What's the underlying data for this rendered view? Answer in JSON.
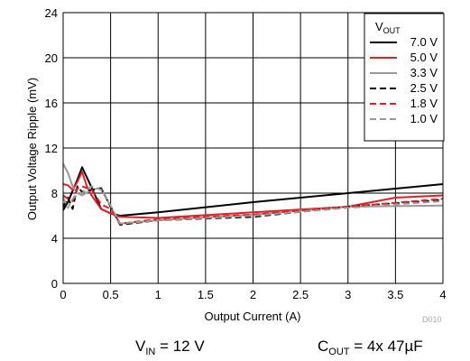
{
  "chart_data": {
    "type": "line",
    "xlabel": "Output Current (A)",
    "ylabel": "Output Voltage Ripple (mV)",
    "xlim": [
      0,
      4
    ],
    "ylim": [
      0,
      24
    ],
    "x_ticks": [
      "0",
      "0.5",
      "1",
      "1.5",
      "2",
      "2.5",
      "3",
      "3.5",
      "4"
    ],
    "y_ticks": [
      "0",
      "4",
      "8",
      "12",
      "16",
      "20",
      "24"
    ],
    "grid": true,
    "legend": {
      "placement": "top-right",
      "title_main": "V",
      "title_sub": "OUT"
    },
    "figure_code": "D010",
    "series": [
      {
        "name": "7.0 V",
        "color": "#000000",
        "dash": "solid",
        "x": [
          0,
          0.05,
          0.1,
          0.15,
          0.2,
          0.3,
          0.4,
          0.5,
          0.6,
          1.0,
          2.0,
          3.0,
          4.0
        ],
        "y": [
          6.5,
          7.2,
          8.2,
          9.2,
          10.3,
          8.5,
          6.6,
          6.2,
          6.0,
          6.3,
          7.2,
          8.0,
          8.8
        ]
      },
      {
        "name": "5.0 V",
        "color": "#e31e24",
        "dash": "solid",
        "x": [
          0,
          0.05,
          0.1,
          0.15,
          0.2,
          0.25,
          0.3,
          0.4,
          0.5,
          0.6,
          1.0,
          2.0,
          3.0,
          3.5,
          4.0
        ],
        "y": [
          8.8,
          8.7,
          8.3,
          9.0,
          9.9,
          8.6,
          7.8,
          6.6,
          6.2,
          5.9,
          5.8,
          6.3,
          6.8,
          7.6,
          7.8
        ]
      },
      {
        "name": "3.3 V",
        "color": "#999999",
        "dash": "solid",
        "x": [
          0,
          0.05,
          0.1,
          0.15,
          0.2,
          0.3,
          0.4,
          0.5,
          0.6,
          1.0,
          2.0,
          3.0,
          4.0
        ],
        "y": [
          10.6,
          9.8,
          8.6,
          8.0,
          7.8,
          8.3,
          8.5,
          6.8,
          5.3,
          5.6,
          6.1,
          6.8,
          6.9
        ]
      },
      {
        "name": "2.5 V",
        "color": "#000000",
        "dash": "dash",
        "x": [
          0,
          0.05,
          0.1,
          0.15,
          0.2,
          0.3,
          0.4,
          0.5,
          0.6,
          1.0,
          2.0,
          3.0,
          4.0
        ],
        "y": [
          6.8,
          7.6,
          6.6,
          8.6,
          8.1,
          8.3,
          8.4,
          6.8,
          5.2,
          5.6,
          5.9,
          6.8,
          7.4
        ]
      },
      {
        "name": "1.8 V",
        "color": "#e31e24",
        "dash": "dash",
        "x": [
          0,
          0.05,
          0.1,
          0.15,
          0.2,
          0.3,
          0.4,
          0.5,
          0.6,
          1.0,
          2.0,
          3.0,
          4.0
        ],
        "y": [
          7.8,
          7.5,
          7.3,
          8.4,
          8.6,
          8.3,
          7.0,
          6.6,
          5.3,
          5.7,
          6.1,
          6.8,
          7.5
        ]
      },
      {
        "name": "1.0 V",
        "color": "#999999",
        "dash": "dash",
        "x": [
          0,
          0.05,
          0.1,
          0.15,
          0.2,
          0.3,
          0.4,
          0.5,
          0.6,
          1.0,
          2.0,
          3.0,
          4.0
        ],
        "y": [
          7.6,
          6.7,
          7.5,
          7.8,
          8.0,
          8.6,
          8.3,
          6.9,
          5.3,
          5.6,
          6.0,
          6.7,
          7.3
        ]
      }
    ]
  },
  "conditions": {
    "vin_main": "V",
    "vin_sub": "IN",
    "vin_value": " = 12 V",
    "cout_main": "C",
    "cout_sub": "OUT",
    "cout_value": " = 4x 47µF"
  }
}
